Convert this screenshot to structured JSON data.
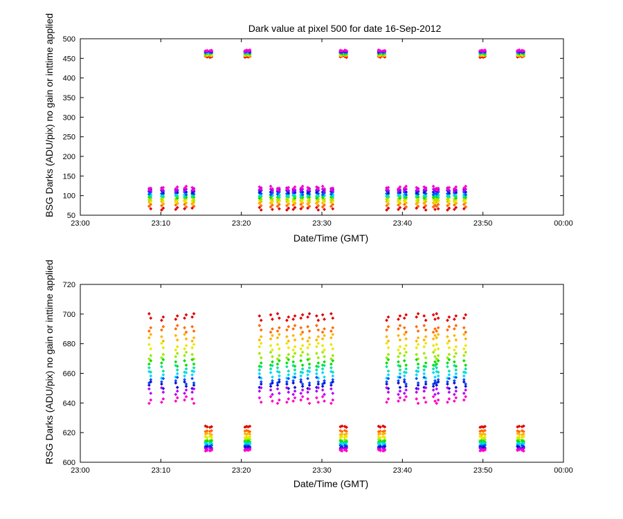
{
  "colors": {
    "levels": [
      "#e00000",
      "#ff6a00",
      "#ffb300",
      "#e8e800",
      "#9ee800",
      "#00e000",
      "#00e0a0",
      "#00d8ff",
      "#0050ff",
      "#1010cc",
      "#b000ff",
      "#ff00c8"
    ]
  },
  "chart_data": [
    {
      "type": "scatter",
      "title": "Dark value at pixel 500 for date 16-Sep-2012",
      "xlabel": "Date/Time (GMT)",
      "ylabel": "BSG Darks (ADU/pix) no gain or inttime applied",
      "xlim": [
        "23:00",
        "00:00"
      ],
      "ylim": [
        50,
        500
      ],
      "x_ticks": [
        "23:00",
        "23:10",
        "23:20",
        "23:30",
        "23:40",
        "23:50",
        "00:00"
      ],
      "y_ticks": [
        "50",
        "100",
        "150",
        "200",
        "250",
        "300",
        "350",
        "400",
        "450",
        "500"
      ],
      "grid": false,
      "low_groups": {
        "times_min": [
          8.7,
          10.2,
          11.9,
          13.1,
          14.0,
          22.3,
          23.8,
          24.6,
          25.7,
          26.6,
          27.5,
          28.3,
          29.5,
          30.2,
          31.2,
          38.2,
          39.6,
          40.3,
          41.9,
          42.8,
          43.9,
          44.4,
          45.7,
          46.5,
          47.8
        ],
        "level_values": [
          68,
          76,
          83,
          88,
          93,
          98,
          101,
          104,
          107,
          111,
          115,
          119
        ]
      },
      "high_groups": {
        "times_min": [
          15.7,
          16.2,
          20.5,
          21.0,
          32.4,
          32.9,
          37.2,
          37.7,
          49.7,
          50.2,
          54.4,
          54.9
        ],
        "level_values": [
          454,
          456,
          458,
          459,
          461,
          462,
          464,
          465,
          466,
          467,
          468,
          470
        ]
      }
    },
    {
      "type": "scatter",
      "title": "",
      "xlabel": "Date/Time (GMT)",
      "ylabel": "RSG Darks (ADU/pix) no gain or inttime applied",
      "xlim": [
        "23:00",
        "00:00"
      ],
      "ylim": [
        600,
        720
      ],
      "x_ticks": [
        "23:00",
        "23:10",
        "23:20",
        "23:30",
        "23:40",
        "23:50",
        "00:00"
      ],
      "y_ticks": [
        "600",
        "620",
        "640",
        "660",
        "680",
        "700",
        "720"
      ],
      "grid": false,
      "low_groups": {
        "times_min": [
          8.7,
          10.2,
          11.9,
          13.1,
          14.0,
          22.3,
          23.8,
          24.6,
          25.7,
          26.6,
          27.5,
          28.3,
          29.5,
          30.2,
          31.2,
          38.2,
          39.6,
          40.3,
          41.9,
          42.8,
          43.9,
          44.4,
          45.7,
          46.5,
          47.8
        ],
        "level_values": [
          698,
          690,
          684,
          678,
          672,
          667,
          663,
          659,
          655,
          652,
          648,
          642
        ]
      },
      "high_groups": {
        "times_min": [
          15.7,
          16.2,
          20.5,
          21.0,
          32.4,
          32.9,
          37.2,
          37.7,
          49.7,
          50.2,
          54.4,
          54.9
        ],
        "level_values": [
          624,
          621,
          619,
          617,
          615,
          614,
          613,
          612,
          611,
          610,
          609,
          608
        ]
      }
    }
  ]
}
